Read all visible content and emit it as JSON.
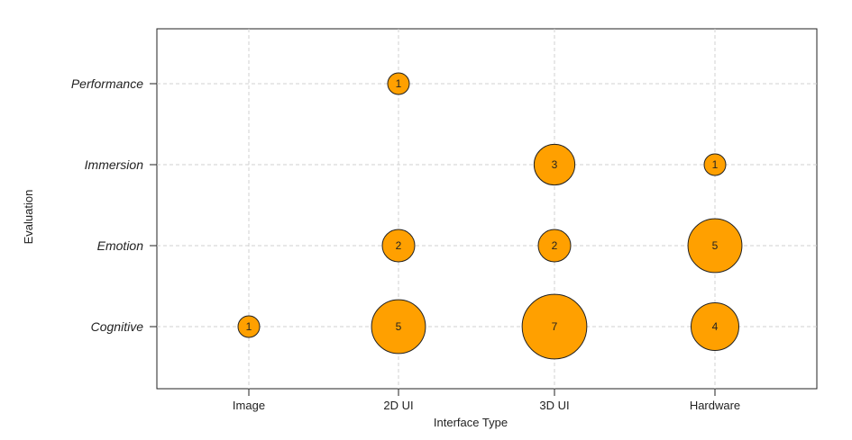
{
  "chart_data": {
    "type": "scatter",
    "subtype": "bubble",
    "title": "",
    "xlabel": "Interface Type",
    "ylabel": "Evaluation",
    "x_categories": [
      "Image",
      "2D UI",
      "3D UI",
      "Hardware"
    ],
    "y_categories": [
      "Cognitive",
      "Emotion",
      "Immersion",
      "Performance"
    ],
    "points": [
      {
        "x": "Image",
        "y": "Cognitive",
        "value": 1
      },
      {
        "x": "2D UI",
        "y": "Performance",
        "value": 1
      },
      {
        "x": "2D UI",
        "y": "Emotion",
        "value": 2
      },
      {
        "x": "2D UI",
        "y": "Cognitive",
        "value": 5
      },
      {
        "x": "3D UI",
        "y": "Immersion",
        "value": 3
      },
      {
        "x": "3D UI",
        "y": "Emotion",
        "value": 2
      },
      {
        "x": "3D UI",
        "y": "Cognitive",
        "value": 7
      },
      {
        "x": "Hardware",
        "y": "Immersion",
        "value": 1
      },
      {
        "x": "Hardware",
        "y": "Emotion",
        "value": 5
      },
      {
        "x": "Hardware",
        "y": "Cognitive",
        "value": 4
      }
    ],
    "grid": true,
    "colors": {
      "bubble_fill": "#ffa000",
      "bubble_stroke": "#222222",
      "grid": "#d0d0d0"
    }
  }
}
